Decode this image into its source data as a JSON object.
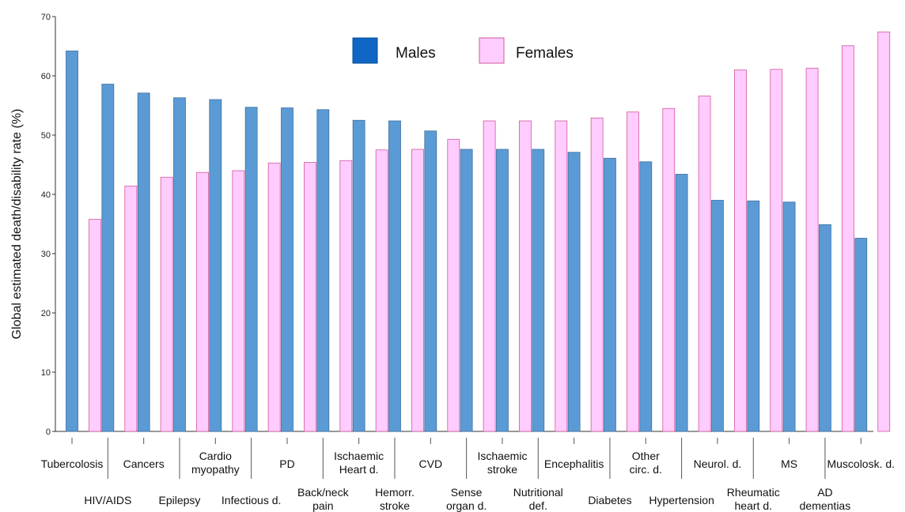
{
  "chart_data": {
    "type": "bar",
    "ylabel": "Global estimated death/disability rate (%)",
    "ylim": [
      0,
      70
    ],
    "yticks": [
      0,
      10,
      20,
      30,
      40,
      50,
      60,
      70
    ],
    "legend_placement": "top-center",
    "grid": false,
    "categories": [
      [
        "Tubercolosis"
      ],
      [
        "HIV/AIDS"
      ],
      [
        "Cancers"
      ],
      [
        "Epilepsy"
      ],
      [
        "Cardio",
        "myopathy"
      ],
      [
        "Infectious d."
      ],
      [
        "PD"
      ],
      [
        "Back/neck",
        "pain"
      ],
      [
        "Ischaemic",
        "Heart d."
      ],
      [
        "Hemorr.",
        "stroke"
      ],
      [
        "CVD"
      ],
      [
        "Sense",
        "organ d."
      ],
      [
        "Ischaemic",
        "stroke"
      ],
      [
        "Nutritional",
        "def."
      ],
      [
        "Encephalitis"
      ],
      [
        "Diabetes"
      ],
      [
        "Other",
        "circ. d."
      ],
      [
        "Hypertension"
      ],
      [
        "Neurol. d."
      ],
      [
        "Rheumatic",
        "heart d."
      ],
      [
        "MS"
      ],
      [
        "AD",
        "dementias"
      ],
      [
        "Muscolosk. d."
      ]
    ],
    "series": [
      {
        "name": "Males",
        "color": "#5b9bd5",
        "edge": "#3f6f9e",
        "values": [
          64.2,
          58.6,
          57.1,
          56.3,
          56.0,
          54.7,
          54.6,
          54.3,
          52.5,
          52.4,
          50.7,
          47.6,
          47.6,
          47.6,
          47.1,
          46.1,
          45.5,
          43.4,
          39.0,
          38.9,
          38.7,
          34.9,
          32.6
        ]
      },
      {
        "name": "Females",
        "color": "#ffccff",
        "edge": "#d2589a",
        "values": [
          35.8,
          41.4,
          42.9,
          43.7,
          44.0,
          45.3,
          45.4,
          45.7,
          47.5,
          47.6,
          49.3,
          52.4,
          52.4,
          52.4,
          52.9,
          53.9,
          54.5,
          56.6,
          61.0,
          61.1,
          61.3,
          65.1,
          67.4
        ]
      }
    ],
    "legend": {
      "males_swatch_color": "#0f66c4"
    }
  }
}
